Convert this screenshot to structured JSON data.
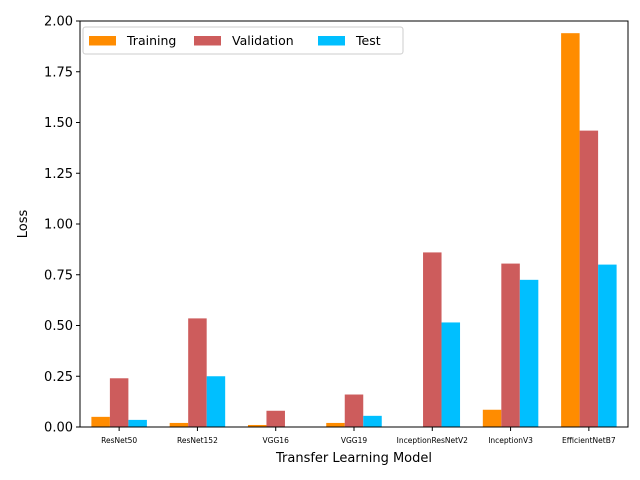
{
  "chart_data": {
    "type": "bar",
    "title": "",
    "xlabel": "Transfer Learning Model",
    "ylabel": "Loss",
    "ylim": [
      0,
      2.0
    ],
    "yticks": [
      "0.00",
      "0.25",
      "0.50",
      "0.75",
      "1.00",
      "1.25",
      "1.50",
      "1.75",
      "2.00"
    ],
    "categories": [
      "ResNet50",
      "ResNet152",
      "VGG16",
      "VGG19",
      "InceptionResNetV2",
      "InceptionV3",
      "EfficientNetB7"
    ],
    "series": [
      {
        "name": "Training",
        "color": "#ff8c00",
        "values": [
          0.05,
          0.02,
          0.01,
          0.02,
          0.002,
          0.085,
          1.94
        ]
      },
      {
        "name": "Validation",
        "color": "#cd5c5c",
        "values": [
          0.24,
          0.535,
          0.08,
          0.16,
          0.86,
          0.805,
          1.46
        ]
      },
      {
        "name": "Test",
        "color": "#00bfff",
        "values": [
          0.035,
          0.25,
          0.0,
          0.055,
          0.515,
          0.725,
          0.8
        ]
      }
    ],
    "legend": "top-left",
    "grid": false
  }
}
